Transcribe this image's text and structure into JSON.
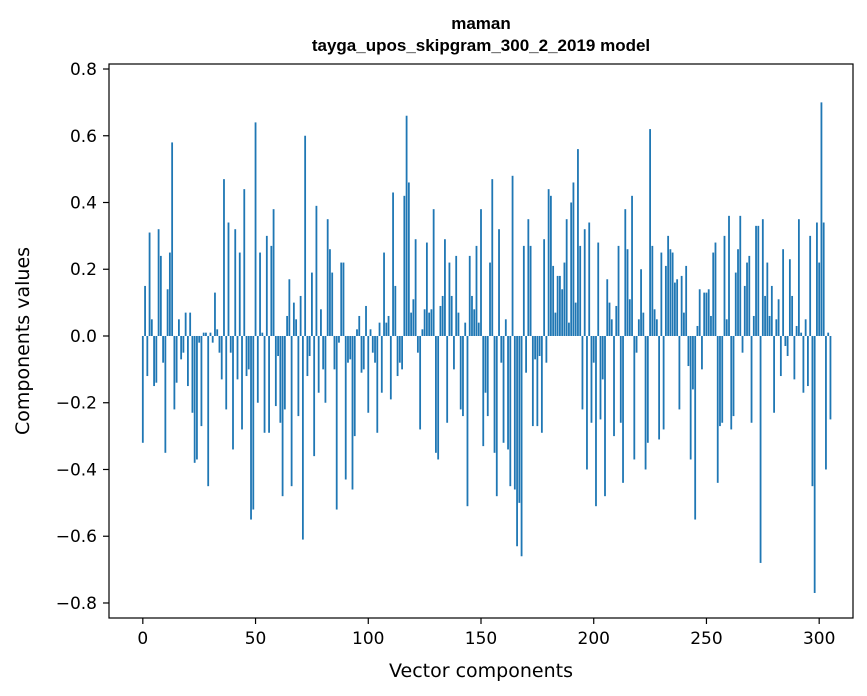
{
  "chart_data": {
    "type": "bar",
    "title": "maman",
    "subtitle": "tayga_upos_skipgram_300_2_2019 model",
    "xlabel": "Vector components",
    "ylabel": "Components values",
    "xlim": [
      -15,
      315
    ],
    "ylim": [
      -0.845,
      0.815
    ],
    "xticks": [
      0,
      50,
      100,
      150,
      200,
      250,
      300
    ],
    "xtick_labels": [
      "0",
      "50",
      "100",
      "150",
      "200",
      "250",
      "300"
    ],
    "yticks": [
      -0.8,
      -0.6,
      -0.4,
      -0.2,
      0.0,
      0.2,
      0.4,
      0.6,
      0.8
    ],
    "ytick_labels": [
      "−0.8",
      "−0.6",
      "−0.4",
      "−0.2",
      "0.0",
      "0.2",
      "0.4",
      "0.6",
      "0.8"
    ],
    "grid": false,
    "bar_color": "#1f77b4",
    "values": [
      -0.32,
      0.15,
      -0.12,
      0.31,
      0.05,
      -0.15,
      -0.14,
      0.32,
      0.24,
      -0.08,
      -0.35,
      0.14,
      0.25,
      0.58,
      -0.22,
      -0.14,
      0.05,
      -0.07,
      -0.05,
      0.07,
      -0.15,
      0.07,
      -0.23,
      -0.38,
      -0.37,
      -0.02,
      -0.27,
      0.01,
      0.01,
      -0.45,
      0.01,
      -0.02,
      0.13,
      0.02,
      -0.05,
      -0.13,
      0.47,
      -0.22,
      0.34,
      -0.05,
      -0.34,
      0.32,
      -0.13,
      0.25,
      -0.28,
      0.44,
      -0.12,
      -0.1,
      -0.55,
      -0.52,
      0.64,
      -0.2,
      0.25,
      0.01,
      -0.29,
      0.3,
      -0.29,
      0.27,
      0.38,
      -0.21,
      -0.06,
      -0.26,
      -0.48,
      -0.22,
      0.06,
      0.17,
      -0.45,
      0.1,
      0.05,
      -0.24,
      0.12,
      -0.61,
      0.6,
      -0.12,
      -0.06,
      0.19,
      -0.36,
      0.39,
      -0.17,
      0.08,
      -0.1,
      -0.2,
      0.35,
      0.26,
      0.19,
      -0.1,
      -0.52,
      -0.02,
      0.22,
      0.22,
      -0.43,
      -0.08,
      -0.07,
      -0.46,
      -0.3,
      0.02,
      0.06,
      -0.11,
      -0.1,
      0.09,
      -0.23,
      0.02,
      -0.05,
      -0.08,
      -0.29,
      0.04,
      -0.17,
      0.25,
      0.04,
      0.06,
      -0.19,
      0.43,
      0.15,
      -0.12,
      -0.08,
      -0.1,
      0.42,
      0.66,
      0.46,
      0.07,
      0.11,
      0.29,
      -0.05,
      -0.28,
      0.02,
      0.08,
      0.28,
      0.07,
      0.08,
      0.38,
      -0.35,
      -0.37,
      0.09,
      0.12,
      0.29,
      -0.26,
      0.22,
      0.12,
      -0.1,
      0.24,
      0.07,
      -0.22,
      -0.24,
      0.04,
      -0.51,
      0.24,
      0.12,
      0.08,
      0.27,
      0.04,
      0.38,
      -0.33,
      -0.17,
      -0.24,
      0.22,
      0.47,
      -0.35,
      -0.48,
      0.32,
      -0.08,
      -0.32,
      0.05,
      -0.34,
      -0.45,
      0.48,
      -0.46,
      -0.63,
      -0.5,
      -0.66,
      0.27,
      -0.11,
      0.35,
      0.27,
      -0.27,
      -0.07,
      -0.27,
      -0.06,
      -0.29,
      0.29,
      -0.08,
      0.44,
      0.42,
      0.21,
      0.07,
      0.18,
      0.18,
      0.14,
      0.22,
      0.35,
      0.04,
      0.4,
      0.46,
      0.1,
      0.56,
      0.27,
      -0.22,
      0.32,
      -0.4,
      0.34,
      -0.26,
      -0.08,
      -0.51,
      0.28,
      -0.25,
      -0.13,
      -0.48,
      0.17,
      0.1,
      0.05,
      -0.3,
      0.09,
      0.27,
      -0.26,
      -0.44,
      0.38,
      0.26,
      0.11,
      0.42,
      -0.37,
      -0.05,
      0.05,
      0.2,
      0.07,
      -0.4,
      -0.32,
      0.62,
      0.27,
      0.08,
      0.05,
      -0.31,
      0.25,
      -0.28,
      0.21,
      0.3,
      0.26,
      0.25,
      0.16,
      0.17,
      -0.22,
      0.18,
      0.07,
      0.21,
      -0.09,
      -0.37,
      -0.16,
      -0.55,
      0.03,
      0.14,
      -0.1,
      0.13,
      0.13,
      0.14,
      0.06,
      0.25,
      0.28,
      -0.44,
      -0.27,
      -0.26,
      0.3,
      0.05,
      0.36,
      -0.28,
      -0.24,
      0.19,
      0.26,
      0.36,
      -0.05,
      0.15,
      0.22,
      0.24,
      -0.26,
      0.06,
      0.33,
      0.33,
      -0.68,
      0.35,
      0.12,
      0.22,
      0.06,
      0.15,
      -0.23,
      0.05,
      0.11,
      -0.12,
      0.26,
      -0.03,
      -0.06,
      0.23,
      0.12,
      -0.13,
      0.03,
      0.35,
      0.01,
      -0.17,
      0.05,
      -0.15,
      0.3,
      -0.45,
      -0.77,
      0.34,
      0.22,
      0.7,
      0.34,
      -0.4,
      0.01,
      -0.25
    ]
  }
}
